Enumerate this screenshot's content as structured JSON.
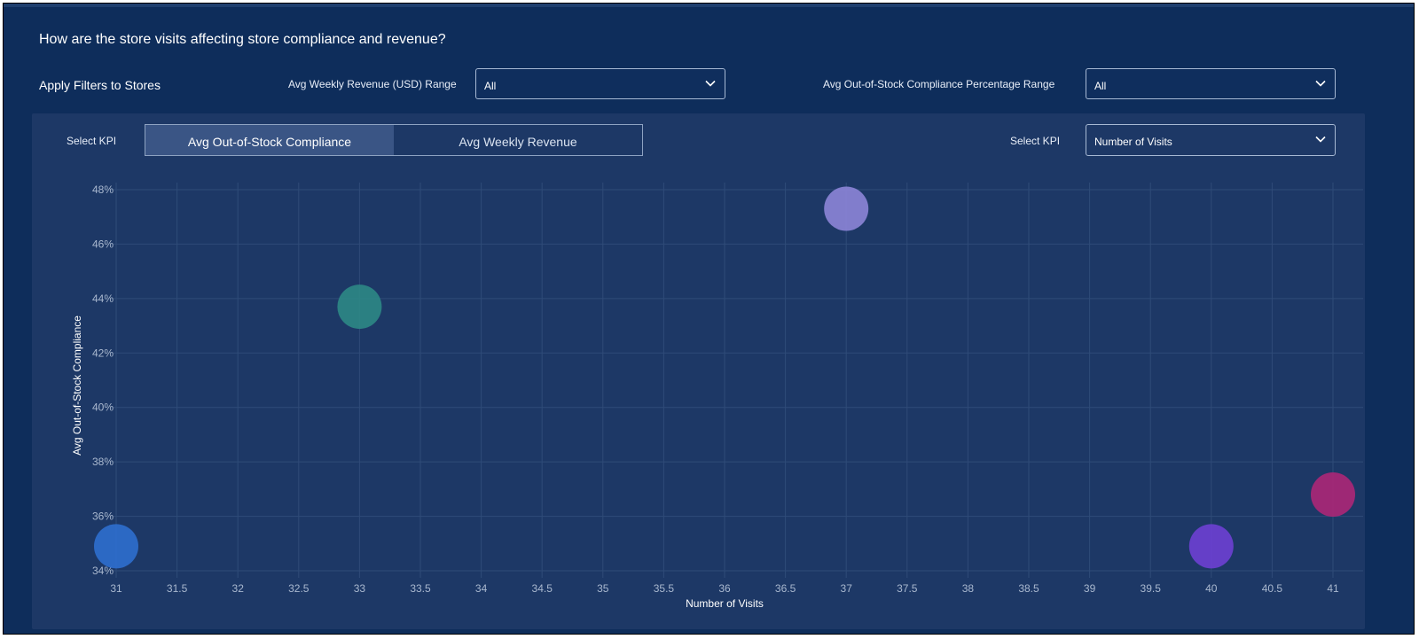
{
  "header": {
    "question": "How are the store visits affecting store compliance and revenue?"
  },
  "filters": {
    "label": "Apply Filters to Stores",
    "revenue_range": {
      "label": "Avg Weekly Revenue (USD) Range",
      "value": "All"
    },
    "compliance_range": {
      "label": "Avg Out-of-Stock Compliance Percentage Range",
      "value": "All"
    }
  },
  "kpi": {
    "left_label": "Select KPI",
    "toggle": [
      {
        "label": "Avg Out-of-Stock Compliance",
        "active": true
      },
      {
        "label": "Avg Weekly Revenue",
        "active": false
      }
    ],
    "right_label": "Select KPI",
    "right_value": "Number of Visits"
  },
  "icons": {
    "dropdown": "chevron-down-icon"
  },
  "colors": {
    "page_bg": "#0e2d5b",
    "panel_bg": "#1d3866",
    "grid": "#2f4b78",
    "axis_text": "#a9b8cf"
  },
  "chart_data": {
    "type": "scatter",
    "xlabel": "Number of Visits",
    "ylabel": "Avg Out-of-Stock Compliance",
    "xlim": [
      31,
      41
    ],
    "ylim": [
      34,
      48
    ],
    "x_ticks": [
      "31",
      "31.5",
      "32",
      "32.5",
      "33",
      "33.5",
      "34",
      "34.5",
      "35",
      "35.5",
      "36",
      "36.5",
      "37",
      "37.5",
      "38",
      "38.5",
      "39",
      "39.5",
      "40",
      "40.5",
      "41"
    ],
    "y_ticks": [
      "34%",
      "36%",
      "38%",
      "40%",
      "42%",
      "44%",
      "46%",
      "48%"
    ],
    "grid": true,
    "points": [
      {
        "x": 31,
        "y": 34.9,
        "color": "#2f6fd1"
      },
      {
        "x": 33,
        "y": 43.7,
        "color": "#2e8a86"
      },
      {
        "x": 37,
        "y": 47.3,
        "color": "#8f86db"
      },
      {
        "x": 40,
        "y": 34.9,
        "color": "#7040d6"
      },
      {
        "x": 41,
        "y": 36.8,
        "color": "#b12677"
      }
    ]
  }
}
